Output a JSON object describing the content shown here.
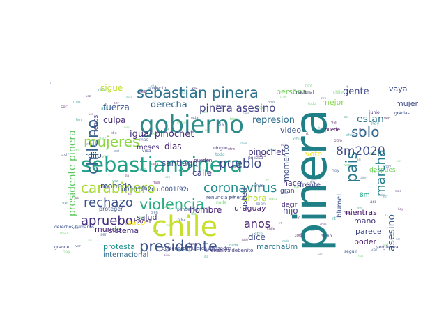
{
  "word_cloud": {
    "words": [
      {
        "text": "pinera",
        "color": "#1f7f86"
      },
      {
        "text": "chile",
        "color": "#c8df2a"
      },
      {
        "text": "gobierno",
        "color": "#2d8c8a"
      },
      {
        "text": "sebastianpinera",
        "color": "#1fa187"
      },
      {
        "text": "sebastian pinera",
        "color": "#2c728e"
      },
      {
        "text": "chileno",
        "color": "#33638d"
      },
      {
        "text": "mujeres",
        "color": "#8dd644"
      },
      {
        "text": "carabinero",
        "color": "#a8db34"
      },
      {
        "text": "violencia",
        "color": "#27ad81"
      },
      {
        "text": "presidente",
        "color": "#3b528b"
      },
      {
        "text": "coronavirus",
        "color": "#238a8d"
      },
      {
        "text": "pueblo",
        "color": "#3e4a89"
      },
      {
        "text": "pais",
        "color": "#2a788e"
      },
      {
        "text": "solo",
        "color": "#32658e"
      },
      {
        "text": "8m2020",
        "color": "#3e4c8a"
      },
      {
        "text": "marcha",
        "color": "#277f8e"
      },
      {
        "text": "apruebo",
        "color": "#46307e"
      },
      {
        "text": "rechazo",
        "color": "#3b518b"
      },
      {
        "text": "pinera asesino",
        "color": "#424086"
      },
      {
        "text": "presidente pinera",
        "color": "#5ec962"
      },
      {
        "text": "anos",
        "color": "#482173"
      },
      {
        "text": "asesino",
        "color": "#355f8d"
      },
      {
        "text": "igual pinochet",
        "color": "#46327e"
      },
      {
        "text": "derecha",
        "color": "#31688e"
      },
      {
        "text": "culpa",
        "color": "#472d7b"
      },
      {
        "text": "fuerza",
        "color": "#3a548c"
      },
      {
        "text": "sigue",
        "color": "#bddf26"
      },
      {
        "text": "moneda",
        "color": "#3b528b"
      },
      {
        "text": "repression",
        "color": "#2e6f8e"
      },
      {
        "text": "represion",
        "color": "#2e6f8e"
      },
      {
        "text": "estan",
        "color": "#2c738e"
      },
      {
        "text": "gente",
        "color": "#3f4788"
      },
      {
        "text": "vaya",
        "color": "#3d4e8a"
      },
      {
        "text": "persona",
        "color": "#6ccd5a"
      },
      {
        "text": "mujer",
        "color": "#3d4e8a"
      },
      {
        "text": "mejor",
        "color": "#86d549"
      },
      {
        "text": "dias",
        "color": "#481d6f"
      },
      {
        "text": "santiago",
        "color": "#3e4989"
      },
      {
        "text": "calle",
        "color": "#423f85"
      },
      {
        "text": "pinochet",
        "color": "#453882"
      },
      {
        "text": "hace",
        "color": "#46337f"
      },
      {
        "text": "ahora",
        "color": "#b5de2b"
      },
      {
        "text": "dice",
        "color": "#3e4a89"
      },
      {
        "text": "hombre",
        "color": "#482576"
      },
      {
        "text": "uruguay",
        "color": "#482475"
      },
      {
        "text": "video",
        "color": "#39558c"
      },
      {
        "text": "momento",
        "color": "#3d4d8a"
      },
      {
        "text": "voto",
        "color": "#f1e51d"
      },
      {
        "text": "hijo",
        "color": "#433e85"
      },
      {
        "text": "usted",
        "color": "#404588"
      },
      {
        "text": "dijo",
        "color": "#3f4889"
      },
      {
        "text": "salud",
        "color": "#443a83"
      },
      {
        "text": "mundo",
        "color": "#482173"
      },
      {
        "text": "sistema",
        "color": "#472f7d"
      },
      {
        "text": "protesta",
        "color": "#21918c"
      },
      {
        "text": "marcha8m",
        "color": "#2a768e"
      },
      {
        "text": "poder",
        "color": "#481a6c"
      },
      {
        "text": "mano",
        "color": "#453781"
      },
      {
        "text": "mientras",
        "color": "#481467"
      },
      {
        "text": "parece",
        "color": "#3e4989"
      },
      {
        "text": "internacional",
        "color": "#2f6c8e"
      },
      {
        "text": "frente",
        "color": "#414487"
      },
      {
        "text": "hacer",
        "color": "#481f70"
      },
      {
        "text": "decir",
        "color": "#472c7a"
      },
      {
        "text": "gran",
        "color": "#3f4788"
      },
      {
        "text": "paco",
        "color": "#fde725"
      },
      {
        "text": "menos",
        "color": "#414487"
      },
      {
        "text": "meses",
        "color": "#46307e"
      },
      {
        "text": "despues",
        "color": "#6ece58"
      },
      {
        "text": "8m",
        "color": "#20a386"
      },
      {
        "text": "blumel",
        "color": "#3a548c"
      },
      {
        "text": "puede",
        "color": "#440154"
      },
      {
        "text": "pueden",
        "color": "#472a7a"
      },
      {
        "text": "proteger",
        "color": "#3b528b"
      },
      {
        "text": "u0001f92c u0001f92c",
        "color": "#3b518b"
      },
      {
        "text": "renuncia pinera",
        "color": "#3e4a89"
      },
      {
        "text": "cristian valdebenito",
        "color": "#433e85"
      },
      {
        "text": "bolsonaro mujeres abusadas",
        "color": "#414487"
      },
      {
        "text": "derechos humanos",
        "color": "#3b528b"
      },
      {
        "text": "grande",
        "color": "#3f4788"
      },
      {
        "text": "junio",
        "color": "#472f7d"
      },
      {
        "text": "gracias",
        "color": "#3e4a89"
      },
      {
        "text": "nacional",
        "color": "#472c7a"
      },
      {
        "text": "dicho",
        "color": "#3f4889"
      },
      {
        "text": "seguir",
        "color": "#3b528b"
      },
      {
        "text": "vergüenza",
        "color": "#3f4788"
      },
      {
        "text": "proyecto",
        "color": "#3e4c8a"
      },
      {
        "text": "ningun",
        "color": "#433e85"
      },
      {
        "text": "politica",
        "color": "#404588"
      },
      {
        "text": "vida",
        "color": "#3e4989"
      },
      {
        "text": "pandemia",
        "color": "#3b528b"
      }
    ]
  }
}
